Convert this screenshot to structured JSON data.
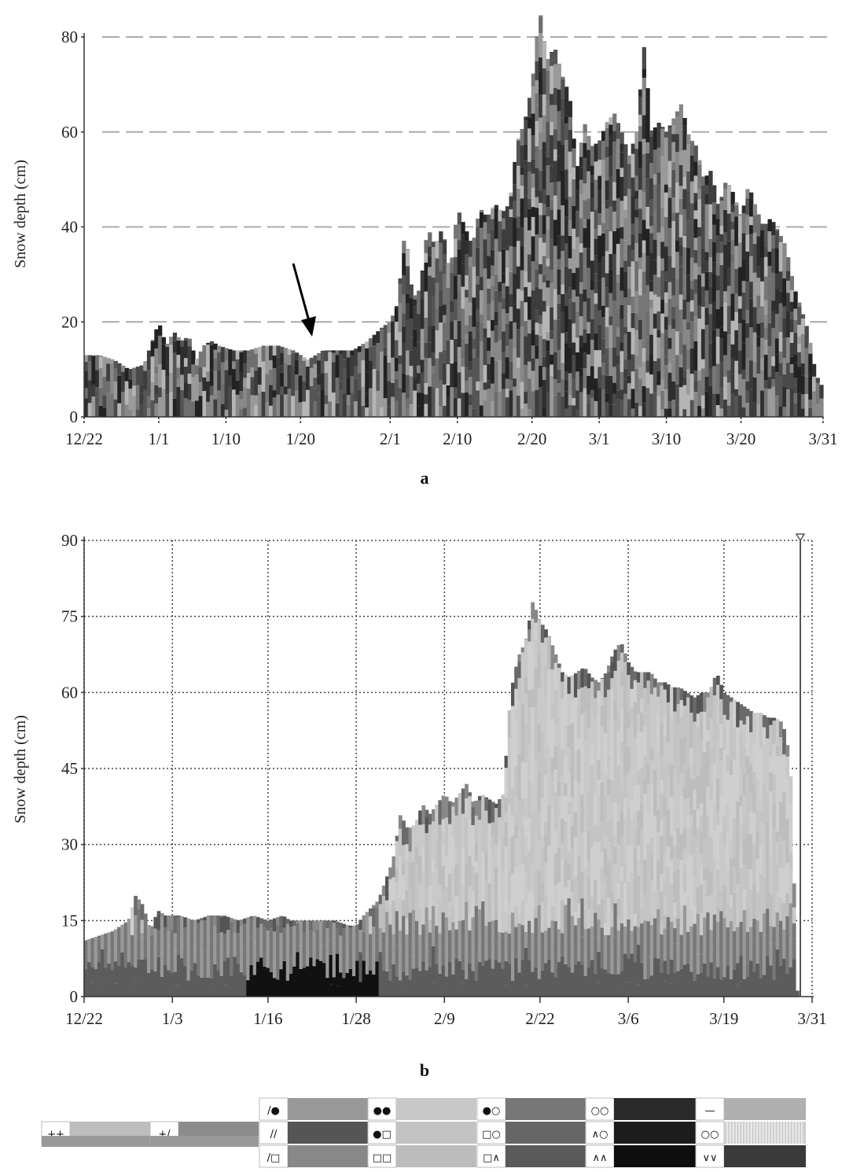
{
  "chart_data": [
    {
      "type": "area",
      "panel_label": "a",
      "ylabel": "Snow depth (cm)",
      "xlabel": "",
      "ylim": [
        0,
        85
      ],
      "yticks": [
        0,
        20,
        40,
        60,
        80
      ],
      "grid": "horizontal dashed",
      "x_tick_labels": [
        "12/22",
        "1/1",
        "1/10",
        "1/20",
        "2/1",
        "2/10",
        "2/20",
        "3/1",
        "3/10",
        "3/20",
        "3/31"
      ],
      "x_tick_days": [
        0,
        10,
        19,
        29,
        41,
        50,
        60,
        69,
        78,
        88,
        99
      ],
      "x_range_days": [
        0,
        99
      ],
      "annotation": "arrow pointing at about 1/21",
      "series": [
        {
          "values": [
            [
              0,
              13
            ],
            [
              2,
              13
            ],
            [
              4,
              12
            ],
            [
              6,
              10
            ],
            [
              8,
              11
            ],
            [
              10,
              20
            ],
            [
              11,
              15
            ],
            [
              12,
              18
            ],
            [
              13,
              16
            ],
            [
              14,
              17
            ],
            [
              15,
              12
            ],
            [
              16,
              15
            ],
            [
              17,
              16
            ],
            [
              18,
              15
            ],
            [
              20,
              14
            ],
            [
              22,
              14
            ],
            [
              24,
              15
            ],
            [
              26,
              15
            ],
            [
              28,
              14
            ],
            [
              30,
              12
            ],
            [
              32,
              14
            ],
            [
              34,
              14
            ],
            [
              36,
              14
            ],
            [
              38,
              16
            ],
            [
              40,
              19
            ],
            [
              41,
              20
            ],
            [
              42,
              24
            ],
            [
              43,
              40
            ],
            [
              44,
              25
            ],
            [
              45,
              27
            ],
            [
              46,
              40
            ],
            [
              47,
              36
            ],
            [
              48,
              40
            ],
            [
              49,
              30
            ],
            [
              50,
              44
            ],
            [
              51,
              40
            ],
            [
              52,
              36
            ],
            [
              53,
              44
            ],
            [
              54,
              42
            ],
            [
              55,
              45
            ],
            [
              56,
              43
            ],
            [
              57,
              45
            ],
            [
              58,
              58
            ],
            [
              59,
              62
            ],
            [
              60,
              70
            ],
            [
              61,
              86
            ],
            [
              62,
              75
            ],
            [
              63,
              78
            ],
            [
              64,
              72
            ],
            [
              65,
              68
            ],
            [
              66,
              52
            ],
            [
              67,
              62
            ],
            [
              68,
              57
            ],
            [
              69,
              58
            ],
            [
              70,
              62
            ],
            [
              71,
              64
            ],
            [
              72,
              60
            ],
            [
              73,
              55
            ],
            [
              74,
              60
            ],
            [
              75,
              78
            ],
            [
              76,
              60
            ],
            [
              77,
              62
            ],
            [
              78,
              60
            ],
            [
              79,
              63
            ],
            [
              80,
              66
            ],
            [
              81,
              59
            ],
            [
              82,
              57
            ],
            [
              83,
              50
            ],
            [
              84,
              52
            ],
            [
              85,
              44
            ],
            [
              86,
              50
            ],
            [
              87,
              47
            ],
            [
              88,
              42
            ],
            [
              89,
              49
            ],
            [
              90,
              44
            ],
            [
              91,
              40
            ],
            [
              92,
              42
            ],
            [
              93,
              39
            ],
            [
              94,
              36
            ],
            [
              95,
              28
            ],
            [
              96,
              23
            ],
            [
              97,
              18
            ],
            [
              98,
              9
            ],
            [
              99,
              6
            ]
          ]
        }
      ]
    },
    {
      "type": "area",
      "panel_label": "b",
      "ylabel": "Snow depth (cm)",
      "xlabel": "",
      "ylim": [
        0,
        90
      ],
      "yticks": [
        0,
        15,
        30,
        45,
        60,
        75,
        90
      ],
      "grid": "dotted grid",
      "x_tick_labels": [
        "12/22",
        "1/3",
        "1/16",
        "1/28",
        "2/9",
        "2/22",
        "3/6",
        "3/19",
        "3/31"
      ],
      "x_tick_days": [
        0,
        12,
        25,
        37,
        49,
        62,
        74,
        87,
        99
      ],
      "x_range_days": [
        0,
        99
      ],
      "series": [
        {
          "values": [
            [
              0,
              11
            ],
            [
              2,
              12
            ],
            [
              4,
              13
            ],
            [
              6,
              15
            ],
            [
              7,
              20
            ],
            [
              8,
              18
            ],
            [
              9,
              13
            ],
            [
              10,
              17
            ],
            [
              11,
              16
            ],
            [
              13,
              16
            ],
            [
              15,
              15
            ],
            [
              17,
              16
            ],
            [
              19,
              16
            ],
            [
              21,
              15
            ],
            [
              23,
              16
            ],
            [
              25,
              15
            ],
            [
              27,
              16
            ],
            [
              28,
              15
            ],
            [
              30,
              15
            ],
            [
              32,
              15
            ],
            [
              34,
              15
            ],
            [
              36,
              14
            ],
            [
              37,
              14
            ],
            [
              38,
              16
            ],
            [
              40,
              19
            ],
            [
              42,
              27
            ],
            [
              43,
              36
            ],
            [
              44,
              33
            ],
            [
              45,
              34
            ],
            [
              46,
              38
            ],
            [
              47,
              36
            ],
            [
              48,
              38
            ],
            [
              49,
              40
            ],
            [
              50,
              38
            ],
            [
              51,
              40
            ],
            [
              52,
              42
            ],
            [
              53,
              38
            ],
            [
              54,
              40
            ],
            [
              55,
              39
            ],
            [
              56,
              38
            ],
            [
              57,
              40
            ],
            [
              58,
              60
            ],
            [
              59,
              67
            ],
            [
              60,
              70
            ],
            [
              61,
              78
            ],
            [
              62,
              74
            ],
            [
              63,
              72
            ],
            [
              64,
              68
            ],
            [
              65,
              64
            ],
            [
              66,
              63
            ],
            [
              67,
              64
            ],
            [
              68,
              65
            ],
            [
              69,
              63
            ],
            [
              70,
              62
            ],
            [
              71,
              64
            ],
            [
              72,
              68
            ],
            [
              73,
              70
            ],
            [
              74,
              66
            ],
            [
              75,
              64
            ],
            [
              76,
              64
            ],
            [
              77,
              64
            ],
            [
              78,
              62
            ],
            [
              79,
              62
            ],
            [
              80,
              61
            ],
            [
              81,
              61
            ],
            [
              82,
              60
            ],
            [
              83,
              59
            ],
            [
              84,
              60
            ],
            [
              85,
              60
            ],
            [
              86,
              64
            ],
            [
              87,
              60
            ],
            [
              88,
              59
            ],
            [
              89,
              58
            ],
            [
              90,
              57
            ],
            [
              91,
              56
            ],
            [
              92,
              56
            ],
            [
              93,
              55
            ],
            [
              94,
              55
            ],
            [
              95,
              54
            ],
            [
              96,
              47
            ],
            [
              97,
              0
            ]
          ]
        }
      ]
    }
  ],
  "legend": {
    "items": [
      {
        "symbol": "++",
        "color": "#bdbdbd"
      },
      {
        "symbol": "+/",
        "color": "#8c8c8c"
      },
      {
        "symbol": "/●",
        "color": "#999999"
      },
      {
        "symbol": "//",
        "color": "#555555"
      },
      {
        "symbol": "/□",
        "color": "#888888"
      },
      {
        "symbol": "●●",
        "color": "#c8c8c8"
      },
      {
        "symbol": "●□",
        "color": "#c2c2c2"
      },
      {
        "symbol": "□□",
        "color": "#bcbcbc"
      },
      {
        "symbol": "●○",
        "color": "#777777"
      },
      {
        "symbol": "□○",
        "color": "#666666"
      },
      {
        "symbol": "□∧",
        "color": "#5a5a5a"
      },
      {
        "symbol": "○○",
        "color": "#2a2a2a"
      },
      {
        "symbol": "∧○",
        "color": "#1c1c1c"
      },
      {
        "symbol": "∧∧",
        "color": "#0e0e0e"
      },
      {
        "symbol": "—",
        "color": "#b0b0b0"
      },
      {
        "symbol": "○○",
        "color": "#cfcfcf"
      },
      {
        "symbol": "∨∨",
        "color": "#3a3a3a"
      }
    ]
  },
  "colors": {
    "axis": "#333333",
    "grid_a": "#aaaaaa",
    "grid_b": "#444444",
    "arrow": "#000000"
  }
}
